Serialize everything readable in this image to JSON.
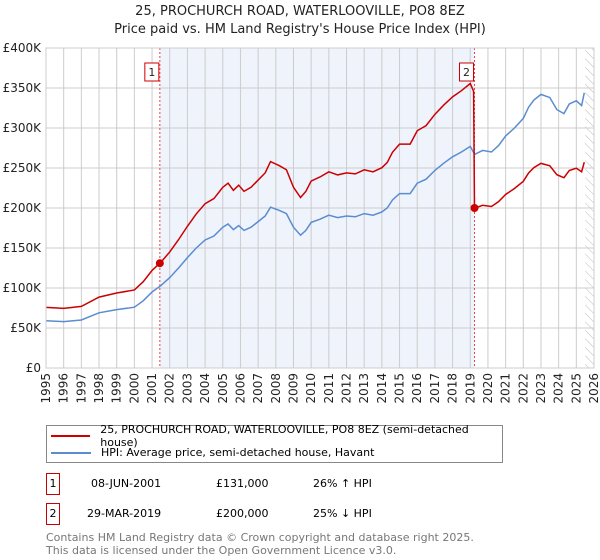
{
  "chart_data": {
    "type": "line",
    "title": "25, PROCHURCH ROAD, WATERLOOVILLE, PO8 8EZ",
    "subtitle": "Price paid vs. HM Land Registry's House Price Index (HPI)",
    "xlim": [
      1995,
      2026
    ],
    "ylim": [
      0,
      400000
    ],
    "y_ticks": [
      {
        "v": 0,
        "label": "£0"
      },
      {
        "v": 50000,
        "label": "£50K"
      },
      {
        "v": 100000,
        "label": "£100K"
      },
      {
        "v": 150000,
        "label": "£150K"
      },
      {
        "v": 200000,
        "label": "£200K"
      },
      {
        "v": 250000,
        "label": "£250K"
      },
      {
        "v": 300000,
        "label": "£300K"
      },
      {
        "v": 350000,
        "label": "£350K"
      },
      {
        "v": 400000,
        "label": "£400K"
      }
    ],
    "x_ticks": [
      "1995",
      "1996",
      "1997",
      "1998",
      "1999",
      "2000",
      "2001",
      "2002",
      "2003",
      "2004",
      "2005",
      "2006",
      "2007",
      "2008",
      "2009",
      "2010",
      "2011",
      "2012",
      "2013",
      "2014",
      "2015",
      "2016",
      "2017",
      "2018",
      "2019",
      "2020",
      "2021",
      "2022",
      "2023",
      "2024",
      "2025",
      "2026"
    ],
    "grid": true,
    "colors": {
      "property": "#cc0000",
      "hpi": "#5b8ccf",
      "shade": "#eef3fc"
    },
    "hpi_series": {
      "name": "HPI: Average price, semi-detached house, Havant",
      "x": [
        1995,
        1996,
        1997,
        1998,
        1999,
        2000,
        2000.5,
        2001,
        2001.5,
        2002,
        2002.5,
        2003,
        2003.5,
        2004,
        2004.5,
        2005,
        2005.3,
        2005.6,
        2005.9,
        2006.2,
        2006.6,
        2007,
        2007.4,
        2007.7,
        2008.2,
        2008.6,
        2009,
        2009.4,
        2009.7,
        2010,
        2010.5,
        2011,
        2011.5,
        2012,
        2012.5,
        2013,
        2013.5,
        2014,
        2014.3,
        2014.6,
        2015,
        2015.6,
        2016,
        2016.5,
        2017,
        2017.5,
        2018,
        2018.5,
        2019,
        2019.25,
        2019.7,
        2020.2,
        2020.6,
        2021,
        2021.5,
        2022,
        2022.3,
        2022.6,
        2023,
        2023.5,
        2023.9,
        2024.3,
        2024.6,
        2025,
        2025.3,
        2025.45
      ],
      "y": [
        59000,
        58000,
        60000,
        69000,
        73000,
        76000,
        84000,
        95000,
        103000,
        113000,
        125000,
        138000,
        150000,
        160000,
        165000,
        176000,
        180000,
        173000,
        178000,
        172000,
        176000,
        183000,
        190000,
        201000,
        197000,
        193000,
        176000,
        166000,
        172000,
        182000,
        186000,
        191000,
        188000,
        190000,
        189000,
        193000,
        191000,
        195000,
        200000,
        210000,
        218000,
        218000,
        231000,
        236000,
        247000,
        256000,
        264000,
        270000,
        277000,
        267000,
        272000,
        270000,
        278000,
        290000,
        300000,
        312000,
        326000,
        335000,
        342000,
        338000,
        323000,
        318000,
        330000,
        334000,
        328000,
        344000
      ]
    },
    "property_series": {
      "name": "25, PROCHURCH ROAD, WATERLOOVILLE, PO8 8EZ (semi-detached house)"
    },
    "sales": [
      {
        "id": "1",
        "x": 2001.44,
        "date": "08-JUN-2001",
        "price": 131000,
        "price_label": "£131,000",
        "hpi_rel": "26% ↑ HPI"
      },
      {
        "id": "2",
        "x": 2019.24,
        "date": "29-MAR-2019",
        "price": 200000,
        "price_label": "£200,000",
        "hpi_rel": "25% ↓ HPI"
      }
    ]
  },
  "footer": {
    "line1": "Contains HM Land Registry data © Crown copyright and database right 2025.",
    "line2": "This data is licensed under the Open Government Licence v3.0."
  }
}
